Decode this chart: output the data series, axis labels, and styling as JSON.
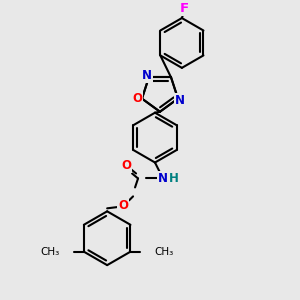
{
  "bg_color": "#e8e8e8",
  "bond_color": "#000000",
  "bond_width": 1.5,
  "atom_colors": {
    "O": "#ff0000",
    "N": "#0000cd",
    "F": "#ff00ff",
    "H": "#008080",
    "C": "#000000"
  },
  "font_size": 8.5
}
